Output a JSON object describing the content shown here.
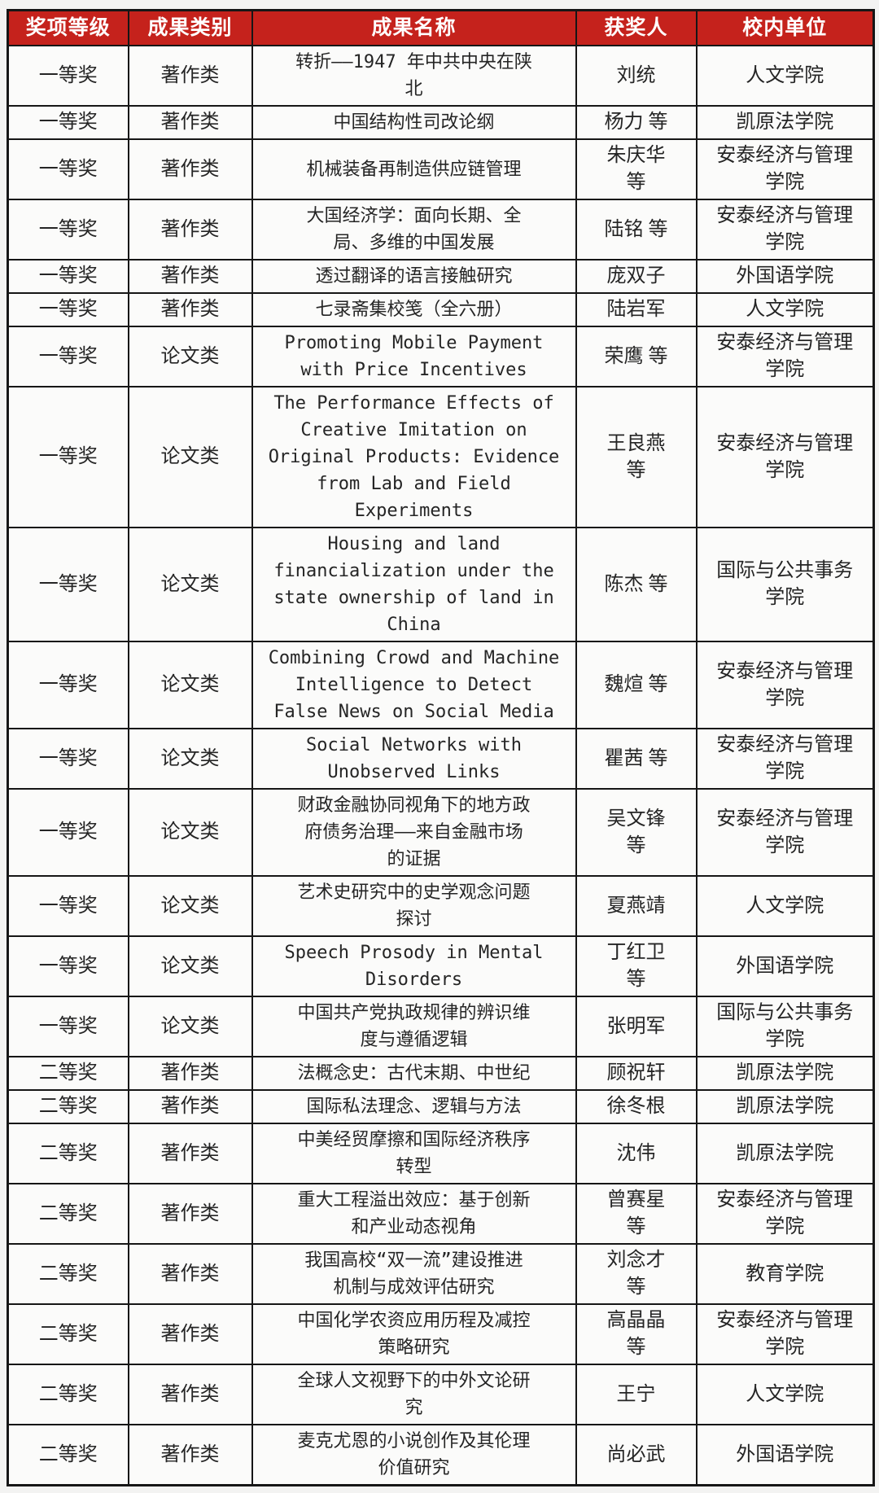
{
  "colors": {
    "header_background": "#c5221c",
    "header_text": "#ffffff",
    "grid_border": "#161616",
    "body_text": "#252525",
    "page_background": "#f3f3f2"
  },
  "table": {
    "columns": [
      {
        "key": "award",
        "label": "奖项等级"
      },
      {
        "key": "category",
        "label": "成果类别"
      },
      {
        "key": "name",
        "label": "成果名称"
      },
      {
        "key": "winner",
        "label": "获奖人"
      },
      {
        "key": "unit",
        "label": "校内单位"
      }
    ],
    "rows": [
      {
        "award": "一等奖",
        "category": "著作类",
        "name": "转折——1947 年中共中央在陕\n北",
        "winner": "刘统",
        "unit": "人文学院"
      },
      {
        "award": "一等奖",
        "category": "著作类",
        "name": "中国结构性司改论纲",
        "winner": "杨力 等",
        "unit": "凯原法学院"
      },
      {
        "award": "一等奖",
        "category": "著作类",
        "name": "机械装备再制造供应链管理",
        "winner": "朱庆华\n等",
        "unit": "安泰经济与管理\n学院"
      },
      {
        "award": "一等奖",
        "category": "著作类",
        "name": "大国经济学：面向长期、全\n局、多维的中国发展",
        "winner": "陆铭 等",
        "unit": "安泰经济与管理\n学院"
      },
      {
        "award": "一等奖",
        "category": "著作类",
        "name": "透过翻译的语言接触研究",
        "winner": "庞双子",
        "unit": "外国语学院"
      },
      {
        "award": "一等奖",
        "category": "著作类",
        "name": "七录斋集校笺（全六册）",
        "winner": "陆岩军",
        "unit": "人文学院"
      },
      {
        "award": "一等奖",
        "category": "论文类",
        "name": "Promoting Mobile Payment\nwith Price Incentives",
        "winner": "荣鹰 等",
        "unit": "安泰经济与管理\n学院"
      },
      {
        "award": "一等奖",
        "category": "论文类",
        "name": "The Performance Effects of\nCreative Imitation on\nOriginal Products: Evidence\nfrom Lab and Field\nExperiments",
        "winner": "王良燕\n等",
        "unit": "安泰经济与管理\n学院"
      },
      {
        "award": "一等奖",
        "category": "论文类",
        "name": "Housing and land\nfinancialization under the\nstate ownership of land in\nChina",
        "winner": "陈杰 等",
        "unit": "国际与公共事务\n学院"
      },
      {
        "award": "一等奖",
        "category": "论文类",
        "name": "Combining Crowd and Machine\nIntelligence to Detect\nFalse News on Social Media",
        "winner": "魏煊 等",
        "unit": "安泰经济与管理\n学院"
      },
      {
        "award": "一等奖",
        "category": "论文类",
        "name": "Social Networks with\nUnobserved Links",
        "winner": "瞿茜 等",
        "unit": "安泰经济与管理\n学院"
      },
      {
        "award": "一等奖",
        "category": "论文类",
        "name": "财政金融协同视角下的地方政\n府债务治理——来自金融市场\n的证据",
        "winner": "吴文锋\n等",
        "unit": "安泰经济与管理\n学院"
      },
      {
        "award": "一等奖",
        "category": "论文类",
        "name": "艺术史研究中的史学观念问题\n探讨",
        "winner": "夏燕靖",
        "unit": "人文学院"
      },
      {
        "award": "一等奖",
        "category": "论文类",
        "name": "Speech Prosody in Mental\nDisorders",
        "winner": "丁红卫\n等",
        "unit": "外国语学院"
      },
      {
        "award": "一等奖",
        "category": "论文类",
        "name": "中国共产党执政规律的辨识维\n度与遵循逻辑",
        "winner": "张明军",
        "unit": "国际与公共事务\n学院"
      },
      {
        "award": "二等奖",
        "category": "著作类",
        "name": "法概念史：古代末期、中世纪",
        "winner": "顾祝轩",
        "unit": "凯原法学院"
      },
      {
        "award": "二等奖",
        "category": "著作类",
        "name": "国际私法理念、逻辑与方法",
        "winner": "徐冬根",
        "unit": "凯原法学院"
      },
      {
        "award": "二等奖",
        "category": "著作类",
        "name": "中美经贸摩擦和国际经济秩序\n转型",
        "winner": "沈伟",
        "unit": "凯原法学院"
      },
      {
        "award": "二等奖",
        "category": "著作类",
        "name": "重大工程溢出效应：基于创新\n和产业动态视角",
        "winner": "曾赛星\n等",
        "unit": "安泰经济与管理\n学院"
      },
      {
        "award": "二等奖",
        "category": "著作类",
        "name": "我国高校“双一流”建设推进\n机制与成效评估研究",
        "winner": "刘念才\n等",
        "unit": "教育学院"
      },
      {
        "award": "二等奖",
        "category": "著作类",
        "name": "中国化学农资应用历程及减控\n策略研究",
        "winner": "高晶晶\n等",
        "unit": "安泰经济与管理\n学院"
      },
      {
        "award": "二等奖",
        "category": "著作类",
        "name": "全球人文视野下的中外文论研\n究",
        "winner": "王宁",
        "unit": "人文学院"
      },
      {
        "award": "二等奖",
        "category": "著作类",
        "name": "麦克尤恩的小说创作及其伦理\n价值研究",
        "winner": "尚必武",
        "unit": "外国语学院"
      }
    ]
  }
}
